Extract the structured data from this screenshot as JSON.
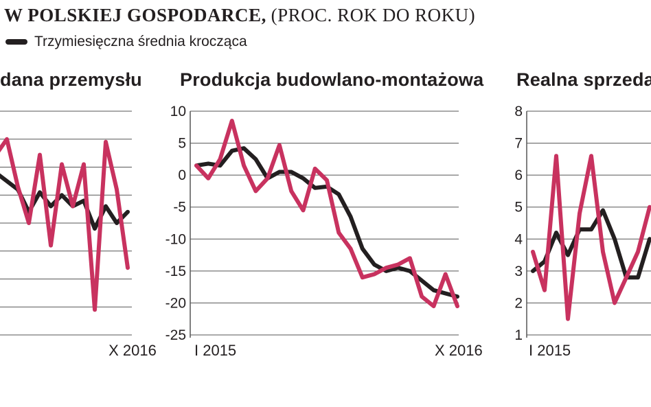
{
  "header": {
    "title_bold": "W POLSKIEJ GOSPODARCE,",
    "title_normal": "(PROC. ROK DO ROKU)"
  },
  "legend": {
    "moving_average_label": "Trzymiesięczna średnia krocząca",
    "moving_average_color": "#231f20"
  },
  "colors": {
    "monthly": "#c8325f",
    "moving_average": "#231f20",
    "grid": "#555555"
  },
  "chart_data": [
    {
      "type": "line",
      "title": "dana przemysłu",
      "xlabel_ticks": [
        "",
        "X 2016"
      ],
      "ylim": null,
      "series": [
        {
          "values": [
            2.2,
            5.0,
            -3.5,
            -10.0,
            2.2,
            -14.0,
            0.5,
            -7.0,
            0.5,
            -25.5,
            4.5,
            -4.0,
            -18.0
          ]
        },
        {
          "name": "Trzymiesięczna średnia krocząca",
          "values": [
            -1.0,
            -2.5,
            -4.0,
            -8.0,
            -4.5,
            -7.0,
            -5.0,
            -7.0,
            -6.0,
            -11.0,
            -7.0,
            -10.0,
            -8.0
          ]
        }
      ]
    },
    {
      "type": "line",
      "title": "Produkcja budowlano-montażowa",
      "x_tick_labels": [
        "I 2015",
        "X 2016"
      ],
      "y_tick_labels": [
        "10",
        "5",
        "0",
        "-5",
        "-10",
        "-15",
        "-20",
        "-25"
      ],
      "ylim": [
        -25,
        10
      ],
      "series": [
        {
          "values": [
            1.5,
            -0.5,
            2.5,
            8.5,
            1.5,
            -2.5,
            -0.5,
            4.7,
            -2.5,
            -5.5,
            1.0,
            -0.8,
            -9.0,
            -11.5,
            -16.0,
            -15.5,
            -14.5,
            -14.0,
            -13.0,
            -19.0,
            -20.5,
            -15.5,
            -20.5
          ]
        },
        {
          "name": "Trzymiesięczna średnia krocząca",
          "values": [
            1.5,
            1.8,
            1.5,
            3.8,
            4.2,
            2.5,
            -0.5,
            0.5,
            0.5,
            -0.5,
            -2.0,
            -1.8,
            -3.0,
            -6.5,
            -11.5,
            -14.0,
            -15.0,
            -14.5,
            -15.0,
            -16.5,
            -18.0,
            -18.5,
            -19.0
          ]
        }
      ]
    },
    {
      "type": "line",
      "title": "Realna sprzeda",
      "x_tick_labels": [
        "I 2015"
      ],
      "y_tick_labels": [
        "8",
        "7",
        "6",
        "5",
        "4",
        "3",
        "2",
        "1"
      ],
      "ylim": [
        1,
        8
      ],
      "series": [
        {
          "values": [
            3.6,
            2.4,
            6.6,
            1.5,
            4.8,
            6.6,
            3.6,
            2.0,
            2.8,
            3.6,
            5.0
          ]
        },
        {
          "name": "Trzymiesięczna średnia krocząca",
          "values": [
            3.0,
            3.3,
            4.2,
            3.5,
            4.3,
            4.3,
            4.9,
            4.0,
            2.8,
            2.8,
            4.0
          ]
        }
      ]
    }
  ]
}
